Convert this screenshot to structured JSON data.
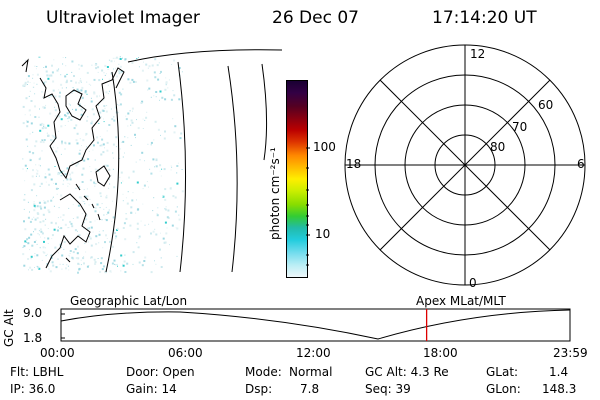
{
  "header": {
    "instrument": "Ultraviolet Imager",
    "date": "26 Dec 07",
    "time": "17:14:20 UT"
  },
  "colorbar": {
    "label": "photon cm⁻²s⁻¹",
    "tick_labels": [
      "100",
      "10"
    ],
    "colors": [
      "#1a0033",
      "#330044",
      "#550022",
      "#880011",
      "#bb0000",
      "#dd3300",
      "#ff8800",
      "#ffbb00",
      "#ffee00",
      "#ccee00",
      "#88dd00",
      "#33cc33",
      "#22bbaa",
      "#22ccdd",
      "#77ddee",
      "#bbeef5",
      "#eef7fa"
    ]
  },
  "polar_plot": {
    "mlt_labels": {
      "top": "12",
      "left": "18",
      "right": "6",
      "bottom": "0"
    },
    "lat_labels": [
      "60",
      "70",
      "80"
    ]
  },
  "timeline": {
    "left_caption": "Geographic Lat/Lon",
    "right_caption": "Apex MLat/MLT",
    "ylabel": "GC Alt",
    "y_ticks": [
      "9.0",
      "1.8"
    ],
    "x_ticks": [
      "00:00",
      "06:00",
      "12:00",
      "18:00",
      "23:59"
    ],
    "marker_color": "#dd0000",
    "marker_time_hours": 17.24
  },
  "info": {
    "filter": "Flt: LBHL",
    "door": "Door: Open",
    "mode_label": "Mode:",
    "mode_value": "Normal",
    "gc_alt": "GC Alt: 4.3 Re",
    "glat_label": "GLat:",
    "glat_value": "1.4",
    "ip": "IP: 36.0",
    "gain": "Gain: 14",
    "dsp_label": "Dsp:",
    "dsp_value": "7.8",
    "seq": "Seq: 39",
    "glon_label": "GLon:",
    "glon_value": "148.3"
  }
}
